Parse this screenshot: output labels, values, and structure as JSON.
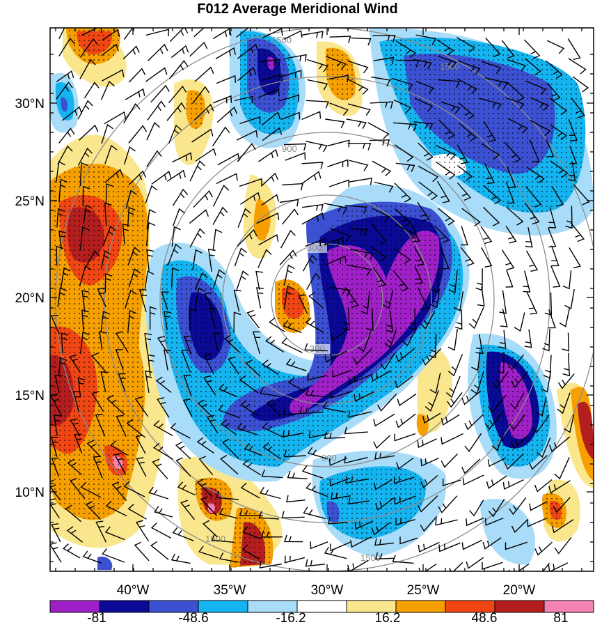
{
  "title": "F012 Average Meridional Wind",
  "lat_labels": [
    "30°N",
    "25°N",
    "20°N",
    "15°N",
    "10°N"
  ],
  "lon_labels": [
    "40°W",
    "35°W",
    "30°W",
    "25°W",
    "20°W"
  ],
  "colorbar": {
    "colors": [
      "#a020c8",
      "#0a0a96",
      "#3c50d2",
      "#14b4f0",
      "#a8dcf8",
      "#ffffff",
      "#fae68c",
      "#f5a000",
      "#f04614",
      "#b41e1e",
      "#f582b4"
    ],
    "labels": [
      "-81",
      "-48.6",
      "-16.2",
      "16.2",
      "48.6",
      "81"
    ]
  },
  "range_rings": [
    "300",
    "900",
    "1500"
  ]
}
